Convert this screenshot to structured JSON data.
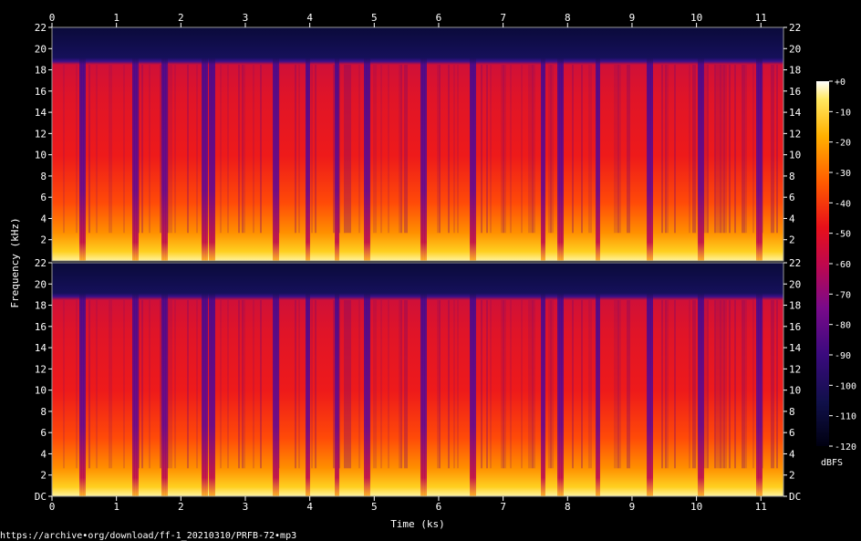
{
  "chart_data": {
    "type": "heatmap",
    "title": "",
    "xlabel": "Time (ks)",
    "ylabel": "Frequency (kHz)",
    "x_ticks": [
      "0",
      "1",
      "2",
      "3",
      "4",
      "5",
      "6",
      "7",
      "8",
      "9",
      "10",
      "11"
    ],
    "xlim": [
      0,
      11.35
    ],
    "y_ticks_top": [
      "22",
      "20",
      "18",
      "16",
      "14",
      "12",
      "10",
      "8",
      "6",
      "4",
      "2"
    ],
    "y_ticks_bottom": [
      "22",
      "20",
      "18",
      "16",
      "14",
      "12",
      "10",
      "8",
      "6",
      "4",
      "2",
      "DC"
    ],
    "ylim": [
      0,
      22
    ],
    "channels": 2,
    "cutoff_khz": 19,
    "colorbar": {
      "label": "dBFS",
      "ticks": [
        "+0",
        "-10",
        "-20",
        "-30",
        "-40",
        "-50",
        "-60",
        "-70",
        "-80",
        "-90",
        "-100",
        "-110",
        "-120"
      ],
      "range": [
        -120,
        0
      ]
    },
    "dropouts_ks": [
      0.45,
      1.28,
      1.72,
      2.35,
      2.47,
      3.45,
      3.95,
      4.4,
      4.88,
      5.75,
      6.5,
      7.6,
      7.88,
      8.45,
      9.25,
      10.05,
      10.95
    ]
  },
  "footer": {
    "source_url": "https://archive∙org/download/ff-1_20210310/PRFB-72∙mp3"
  }
}
